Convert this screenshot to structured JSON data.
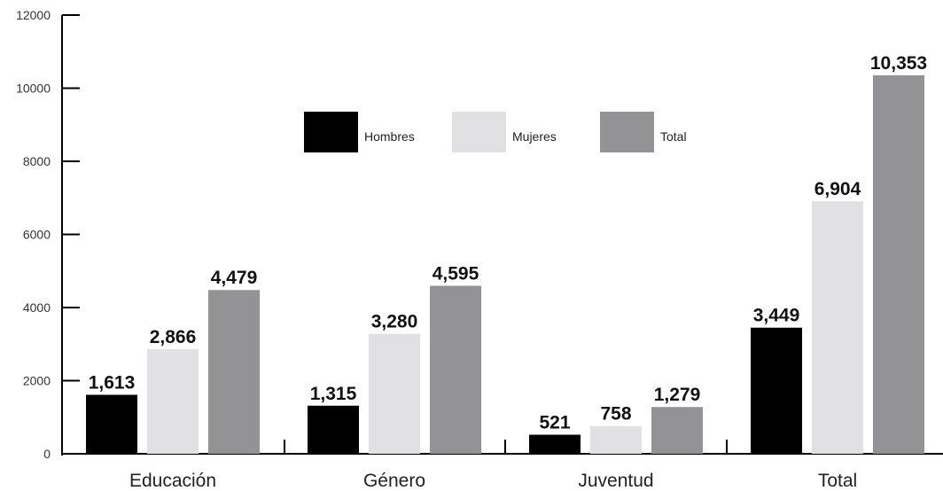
{
  "chart_data": {
    "type": "bar",
    "title": "",
    "xlabel": "",
    "ylabel": "",
    "categories": [
      "Educación",
      "Género",
      "Juventud",
      "Total"
    ],
    "series": [
      {
        "name": "Hombres",
        "color": "#000000",
        "values": [
          1613,
          1315,
          521,
          3449
        ],
        "labels": [
          "1,613",
          "1,315",
          "521",
          "3,449"
        ]
      },
      {
        "name": "Mujeres",
        "color": "#e1e1e3",
        "values": [
          2866,
          3280,
          758,
          6904
        ],
        "labels": [
          "2,866",
          "3,280",
          "758",
          "6,904"
        ]
      },
      {
        "name": "Total",
        "color": "#939395",
        "values": [
          4479,
          4595,
          1279,
          10353
        ],
        "labels": [
          "4,479",
          "4,595",
          "1,279",
          "10,353"
        ]
      }
    ],
    "ylim": [
      0,
      12000
    ],
    "yticks": [
      0,
      2000,
      4000,
      6000,
      8000,
      10000,
      12000
    ],
    "grid": false,
    "legend": "top-center"
  }
}
